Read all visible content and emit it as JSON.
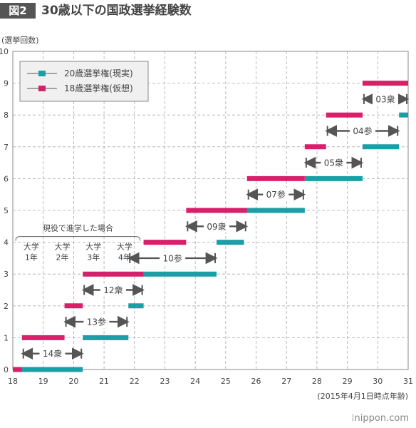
{
  "header": {
    "badge": "図2",
    "title": "30歳以下の国政選挙経験数"
  },
  "footer": {
    "logo": "nippon.com",
    "logo_mark": "⁞"
  },
  "chart_data": {
    "type": "line",
    "ylabel": "(選挙回数)",
    "xlabel": "(2015年4月1日時点年齢)",
    "xlim": [
      18,
      31
    ],
    "ylim": [
      0,
      10
    ],
    "x_ticks": [
      "18",
      "19",
      "20",
      "21",
      "22",
      "23",
      "24",
      "25",
      "26",
      "27",
      "28",
      "29",
      "30",
      "31"
    ],
    "y_ticks": [
      "0",
      "1",
      "2",
      "3",
      "4",
      "5",
      "6",
      "7",
      "8",
      "9",
      "10"
    ],
    "grid": true,
    "legend_position": "top-left",
    "colors": {
      "teal": "#1a9fa6",
      "pink": "#d91f6a",
      "grid": "#aaaaaa",
      "arrow": "#555555"
    },
    "series": [
      {
        "name": "20歳選挙権(現実)",
        "color": "#1a9fa6",
        "x": [
          18,
          20.3,
          20.3,
          21.8,
          21.8,
          22.3,
          22.3,
          24.7,
          24.7,
          25.6,
          25.6,
          27.6,
          27.6,
          29.5,
          29.5,
          30.7,
          30.7,
          31
        ],
        "y": [
          0,
          0,
          1,
          1,
          2,
          2,
          3,
          3,
          4,
          4,
          5,
          5,
          6,
          6,
          7,
          7,
          8,
          8
        ]
      },
      {
        "name": "18歳選挙権(仮想)",
        "color": "#d91f6a",
        "x": [
          18,
          18.3,
          18.3,
          19.7,
          19.7,
          20.3,
          20.3,
          22.3,
          22.3,
          23.7,
          23.7,
          25.7,
          25.7,
          27.6,
          27.6,
          28.3,
          28.3,
          29.5,
          29.5,
          31
        ],
        "y": [
          0,
          0,
          1,
          1,
          2,
          2,
          3,
          3,
          4,
          4,
          5,
          5,
          6,
          6,
          7,
          7,
          8,
          8,
          9,
          9
        ]
      }
    ],
    "elections": [
      {
        "label": "14衆",
        "x1": 18.3,
        "x2": 20.3,
        "y": 0.5
      },
      {
        "label": "13参",
        "x1": 19.7,
        "x2": 21.8,
        "y": 1.5
      },
      {
        "label": "12衆",
        "x1": 20.3,
        "x2": 22.3,
        "y": 2.5
      },
      {
        "label": "10参",
        "x1": 21.8,
        "x2": 24.7,
        "y": 3.5
      },
      {
        "label": "09衆",
        "x1": 23.7,
        "x2": 25.7,
        "y": 4.5
      },
      {
        "label": "07参",
        "x1": 25.7,
        "x2": 27.6,
        "y": 5.5
      },
      {
        "label": "05衆",
        "x1": 27.6,
        "x2": 29.5,
        "y": 6.5
      },
      {
        "label": "04参",
        "x1": 28.3,
        "x2": 30.7,
        "y": 7.5
      },
      {
        "label": "03衆",
        "x1": 29.5,
        "x2": 31,
        "y": 8.5
      }
    ],
    "student_annotation": {
      "label": "現役で進学した場合",
      "x_range": [
        20,
        22
      ],
      "y": 4,
      "years": [
        "大学\n1年",
        "大学\n2年",
        "大学\n3年",
        "大学\n4年"
      ]
    }
  }
}
